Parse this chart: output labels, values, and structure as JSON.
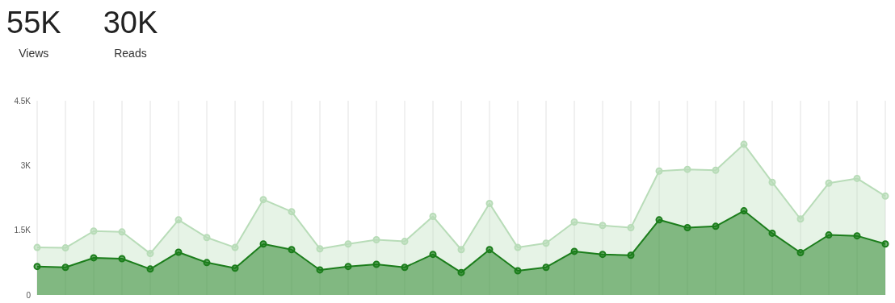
{
  "chart_data": {
    "type": "area",
    "annotations": [
      "55K",
      "Views",
      "30K",
      "Reads"
    ],
    "categories": [
      null,
      null,
      null,
      null,
      null,
      null,
      null,
      null,
      null,
      null,
      null,
      null,
      null,
      null,
      null,
      null,
      null,
      null,
      null,
      null,
      null,
      null,
      null,
      null,
      null,
      null,
      null,
      null,
      null,
      null,
      null
    ],
    "series": [
      {
        "color": "#b8dcb8",
        "values": [
          1100,
          1090,
          1480,
          1460,
          960,
          1740,
          1330,
          1100,
          2210,
          1930,
          1070,
          1180,
          1280,
          1240,
          1820,
          1050,
          2120,
          1100,
          1200,
          1690,
          1610,
          1560,
          2870,
          2910,
          2890,
          3490,
          2610,
          1760,
          2590,
          2700,
          2290
        ]
      },
      {
        "color": "#1b7d1b",
        "values": [
          660,
          640,
          860,
          840,
          600,
          990,
          750,
          620,
          1180,
          1050,
          580,
          660,
          710,
          640,
          940,
          520,
          1050,
          560,
          640,
          1010,
          940,
          920,
          1740,
          1560,
          1590,
          1950,
          1430,
          980,
          1390,
          1370,
          1180
        ]
      }
    ],
    "ylim": [
      0,
      4500
    ],
    "yticks": [
      0,
      {
        "value": 1500,
        "label": "1.5K"
      },
      {
        "value": 3000,
        "label": "3K"
      },
      {
        "value": 4500,
        "label": "4.5K"
      }
    ],
    "grid": "x",
    "marker": "circle",
    "line_style": "solid",
    "tick_labels": "y"
  }
}
